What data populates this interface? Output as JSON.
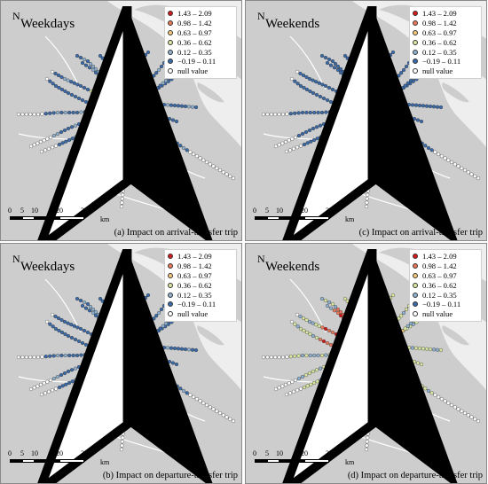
{
  "colors": {
    "land": "#cdcdcd",
    "water": "#eeeeee",
    "district_line": "#ffffff",
    "route_line": "#4a4a4a",
    "class_colors": [
      "#d7191c",
      "#e8785a",
      "#f4c97a",
      "#d9e8a2",
      "#8fb1d0",
      "#3b6aa8",
      "#ffffff"
    ]
  },
  "legend": {
    "items": [
      {
        "label": "1.43 – 2.09",
        "color": "#d7191c"
      },
      {
        "label": "0.98 – 1.42",
        "color": "#e8785a"
      },
      {
        "label": "0.63 – 0.97",
        "color": "#f4c97a"
      },
      {
        "label": "0.36 – 0.62",
        "color": "#d9e8a2"
      },
      {
        "label": "0.12 – 0.35",
        "color": "#8fb1d0"
      },
      {
        "label": "−0.19 – 0.11",
        "color": "#3b6aa8"
      },
      {
        "label": "null value",
        "color": "#ffffff"
      }
    ]
  },
  "north_label": "N",
  "scale": {
    "ticks": [
      "0",
      "5",
      "10",
      "20",
      "30"
    ],
    "unit": "km"
  },
  "panels": [
    {
      "id": "a",
      "period": "Weekdays",
      "caption": "(a) Impact on arrival-transfer trip",
      "pattern": "arrival_weekday"
    },
    {
      "id": "c",
      "period": "Weekends",
      "caption": "(c) Impact on arrival-transfer trip",
      "pattern": "arrival_weekend"
    },
    {
      "id": "b",
      "period": "Weekdays",
      "caption": "(b) Impact on departure-transfer trip",
      "pattern": "departure_weekday"
    },
    {
      "id": "d",
      "period": "Weekends",
      "caption": "(d) Impact on departure-transfer trip",
      "pattern": "departure_weekend"
    }
  ]
}
